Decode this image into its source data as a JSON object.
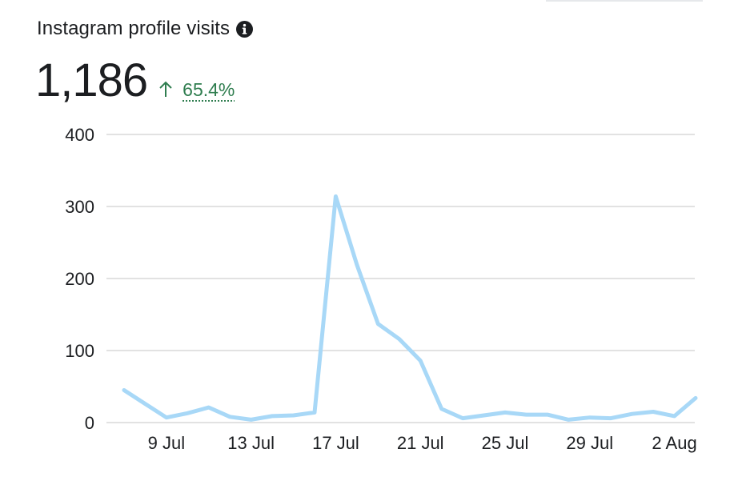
{
  "card": {
    "title": "Instagram profile visits",
    "info_icon": "info-icon",
    "total": "1,186",
    "change_icon": "arrow-up-icon",
    "change": "65.4%"
  },
  "colors": {
    "line": "#a8d8f7",
    "grid": "#d9d9d9",
    "change": "#2f7d4f",
    "text": "#1c1e21"
  },
  "chart_data": {
    "type": "line",
    "x": [
      "7 Jul",
      "8 Jul",
      "9 Jul",
      "10 Jul",
      "11 Jul",
      "12 Jul",
      "13 Jul",
      "14 Jul",
      "15 Jul",
      "16 Jul",
      "17 Jul",
      "18 Jul",
      "19 Jul",
      "20 Jul",
      "21 Jul",
      "22 Jul",
      "23 Jul",
      "24 Jul",
      "25 Jul",
      "26 Jul",
      "27 Jul",
      "28 Jul",
      "29 Jul",
      "30 Jul",
      "31 Jul",
      "1 Aug",
      "2 Aug",
      "3 Aug"
    ],
    "values": [
      45,
      26,
      7,
      13,
      21,
      8,
      4,
      9,
      10,
      14,
      314,
      219,
      137,
      116,
      86,
      19,
      6,
      10,
      14,
      11,
      11,
      4,
      7,
      6,
      12,
      15,
      9,
      34
    ],
    "x_tick_labels": [
      "9 Jul",
      "13 Jul",
      "17 Jul",
      "21 Jul",
      "25 Jul",
      "29 Jul",
      "2 Aug"
    ],
    "y_ticks": [
      0,
      100,
      200,
      300,
      400
    ],
    "ylim": [
      0,
      400
    ],
    "grid": true,
    "legend": "none"
  }
}
